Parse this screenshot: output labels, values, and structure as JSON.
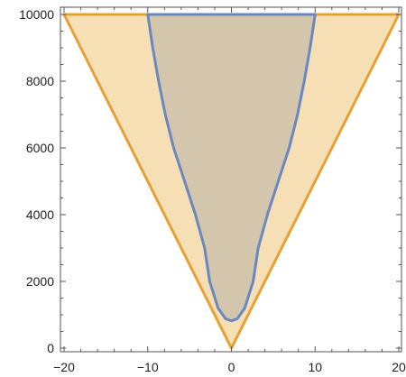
{
  "chart_data": {
    "type": "area",
    "title": "",
    "xlabel": "",
    "ylabel": "",
    "xlim": [
      -20,
      20
    ],
    "ylim": [
      0,
      10000
    ],
    "grid": false,
    "x_ticks": [
      -20,
      -10,
      0,
      10,
      20
    ],
    "y_ticks": [
      0,
      2000,
      4000,
      6000,
      8000,
      10000
    ],
    "x_tick_labels": [
      "−20",
      "−10",
      "0",
      "10",
      "20"
    ],
    "y_tick_labels": [
      "0",
      "2000",
      "4000",
      "6000",
      "8000",
      "10000"
    ],
    "series": [
      {
        "color": "#e8a033",
        "fill": "#f6dfb5",
        "points": [
          [
            -20,
            10000
          ],
          [
            0,
            0
          ],
          [
            20,
            10000
          ]
        ]
      },
      {
        "color": "#6a88c0",
        "fill": "#d4c6ad",
        "points": [
          [
            -10,
            10000
          ],
          [
            -9.4,
            9000
          ],
          [
            -8.7,
            8000
          ],
          [
            -7.9,
            7000
          ],
          [
            -6.9,
            6000
          ],
          [
            -5.6,
            5000
          ],
          [
            -4.3,
            4000
          ],
          [
            -3.2,
            3000
          ],
          [
            -2.6,
            2000
          ],
          [
            -1.6,
            1200
          ],
          [
            -0.7,
            880
          ],
          [
            0,
            820
          ],
          [
            0.7,
            880
          ],
          [
            1.6,
            1200
          ],
          [
            2.6,
            2000
          ],
          [
            3.2,
            3000
          ],
          [
            4.3,
            4000
          ],
          [
            5.6,
            5000
          ],
          [
            6.9,
            6000
          ],
          [
            7.9,
            7000
          ],
          [
            8.7,
            8000
          ],
          [
            9.4,
            9000
          ],
          [
            10,
            10000
          ]
        ]
      }
    ]
  }
}
